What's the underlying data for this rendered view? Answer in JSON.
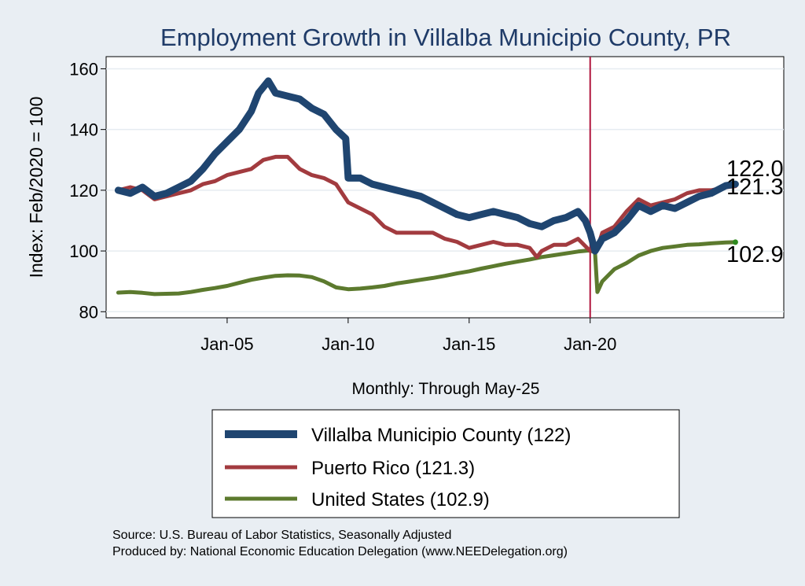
{
  "chart_data": {
    "type": "line",
    "title": "Employment Growth in Villalba Municipio  County, PR",
    "ylabel": "Index: Feb/2020 = 100",
    "xlabel": "Monthly: Through May-25",
    "ylim": [
      78,
      164
    ],
    "yticks": [
      80,
      100,
      120,
      140,
      160
    ],
    "xlim": [
      2000.0,
      2028.0
    ],
    "xticks": [
      {
        "value": 2005.0,
        "label": "Jan-05"
      },
      {
        "value": 2010.0,
        "label": "Jan-10"
      },
      {
        "value": 2015.0,
        "label": "Jan-15"
      },
      {
        "value": 2020.0,
        "label": "Jan-20"
      }
    ],
    "reference_line_x": 2020.0,
    "grid": true,
    "series": [
      {
        "name": "Villalba Municipio  County (122)",
        "color": "#1f4570",
        "end_label": "122.0",
        "points": [
          [
            2000.5,
            120
          ],
          [
            2001.0,
            119
          ],
          [
            2001.5,
            121
          ],
          [
            2002.0,
            118
          ],
          [
            2002.5,
            119
          ],
          [
            2003.0,
            121
          ],
          [
            2003.5,
            123
          ],
          [
            2004.0,
            127
          ],
          [
            2004.5,
            132
          ],
          [
            2005.0,
            136
          ],
          [
            2005.5,
            140
          ],
          [
            2006.0,
            146
          ],
          [
            2006.3,
            152
          ],
          [
            2006.7,
            156
          ],
          [
            2007.0,
            152
          ],
          [
            2007.5,
            151
          ],
          [
            2008.0,
            150
          ],
          [
            2008.5,
            147
          ],
          [
            2009.0,
            145
          ],
          [
            2009.5,
            140
          ],
          [
            2009.9,
            137
          ],
          [
            2010.0,
            124
          ],
          [
            2010.5,
            124
          ],
          [
            2011.0,
            122
          ],
          [
            2011.5,
            121
          ],
          [
            2012.0,
            120
          ],
          [
            2012.5,
            119
          ],
          [
            2013.0,
            118
          ],
          [
            2013.5,
            116
          ],
          [
            2014.0,
            114
          ],
          [
            2014.5,
            112
          ],
          [
            2015.0,
            111
          ],
          [
            2015.5,
            112
          ],
          [
            2016.0,
            113
          ],
          [
            2016.5,
            112
          ],
          [
            2017.0,
            111
          ],
          [
            2017.5,
            109
          ],
          [
            2018.0,
            108
          ],
          [
            2018.5,
            110
          ],
          [
            2019.0,
            111
          ],
          [
            2019.5,
            113
          ],
          [
            2019.8,
            110
          ],
          [
            2020.0,
            106
          ],
          [
            2020.2,
            100
          ],
          [
            2020.5,
            104
          ],
          [
            2021.0,
            106
          ],
          [
            2021.5,
            110
          ],
          [
            2022.0,
            115
          ],
          [
            2022.5,
            113
          ],
          [
            2023.0,
            115
          ],
          [
            2023.5,
            114
          ],
          [
            2024.0,
            116
          ],
          [
            2024.5,
            118
          ],
          [
            2025.0,
            119
          ],
          [
            2025.6,
            121.5
          ],
          [
            2026.0,
            122.0
          ]
        ]
      },
      {
        "name": "Puerto Rico (121.3)",
        "color": "#a23b3f",
        "end_label": "121.3",
        "points": [
          [
            2000.5,
            120
          ],
          [
            2001.0,
            121
          ],
          [
            2001.5,
            120
          ],
          [
            2002.0,
            117
          ],
          [
            2002.5,
            118
          ],
          [
            2003.0,
            119
          ],
          [
            2003.5,
            120
          ],
          [
            2004.0,
            122
          ],
          [
            2004.5,
            123
          ],
          [
            2005.0,
            125
          ],
          [
            2005.5,
            126
          ],
          [
            2006.0,
            127
          ],
          [
            2006.5,
            130
          ],
          [
            2007.0,
            131
          ],
          [
            2007.5,
            131
          ],
          [
            2008.0,
            127
          ],
          [
            2008.5,
            125
          ],
          [
            2009.0,
            124
          ],
          [
            2009.5,
            122
          ],
          [
            2010.0,
            116
          ],
          [
            2010.5,
            114
          ],
          [
            2011.0,
            112
          ],
          [
            2011.5,
            108
          ],
          [
            2012.0,
            106
          ],
          [
            2012.5,
            106
          ],
          [
            2013.0,
            106
          ],
          [
            2013.5,
            106
          ],
          [
            2014.0,
            104
          ],
          [
            2014.5,
            103
          ],
          [
            2015.0,
            101
          ],
          [
            2015.5,
            102
          ],
          [
            2016.0,
            103
          ],
          [
            2016.5,
            102
          ],
          [
            2017.0,
            102
          ],
          [
            2017.5,
            101
          ],
          [
            2017.8,
            98
          ],
          [
            2018.0,
            100
          ],
          [
            2018.5,
            102
          ],
          [
            2019.0,
            102
          ],
          [
            2019.5,
            104
          ],
          [
            2020.0,
            100
          ],
          [
            2020.3,
            101
          ],
          [
            2020.5,
            106
          ],
          [
            2021.0,
            108
          ],
          [
            2021.5,
            113
          ],
          [
            2022.0,
            117
          ],
          [
            2022.5,
            115
          ],
          [
            2023.0,
            116
          ],
          [
            2023.5,
            117
          ],
          [
            2024.0,
            119
          ],
          [
            2024.5,
            120
          ],
          [
            2025.0,
            120
          ],
          [
            2025.6,
            121
          ],
          [
            2026.0,
            121.3
          ]
        ]
      },
      {
        "name": "United States (102.9)",
        "color": "#5c7a2e",
        "end_label": "102.9",
        "points": [
          [
            2000.5,
            86.3
          ],
          [
            2001.0,
            86.5
          ],
          [
            2001.5,
            86.2
          ],
          [
            2002.0,
            85.8
          ],
          [
            2002.5,
            85.9
          ],
          [
            2003.0,
            86.0
          ],
          [
            2003.5,
            86.5
          ],
          [
            2004.0,
            87.2
          ],
          [
            2004.5,
            87.8
          ],
          [
            2005.0,
            88.5
          ],
          [
            2005.5,
            89.5
          ],
          [
            2006.0,
            90.5
          ],
          [
            2006.5,
            91.2
          ],
          [
            2007.0,
            91.8
          ],
          [
            2007.5,
            92.0
          ],
          [
            2008.0,
            91.9
          ],
          [
            2008.5,
            91.4
          ],
          [
            2009.0,
            90.0
          ],
          [
            2009.5,
            88.0
          ],
          [
            2010.0,
            87.4
          ],
          [
            2010.5,
            87.6
          ],
          [
            2011.0,
            88.0
          ],
          [
            2011.5,
            88.5
          ],
          [
            2012.0,
            89.3
          ],
          [
            2012.5,
            89.9
          ],
          [
            2013.0,
            90.5
          ],
          [
            2013.5,
            91.1
          ],
          [
            2014.0,
            91.8
          ],
          [
            2014.5,
            92.6
          ],
          [
            2015.0,
            93.3
          ],
          [
            2015.5,
            94.2
          ],
          [
            2016.0,
            95.0
          ],
          [
            2016.5,
            95.8
          ],
          [
            2017.0,
            96.5
          ],
          [
            2017.5,
            97.2
          ],
          [
            2018.0,
            98.0
          ],
          [
            2018.5,
            98.6
          ],
          [
            2019.0,
            99.2
          ],
          [
            2019.5,
            99.8
          ],
          [
            2020.0,
            100.2
          ],
          [
            2020.2,
            99.5
          ],
          [
            2020.3,
            86.5
          ],
          [
            2020.5,
            90.0
          ],
          [
            2021.0,
            94.0
          ],
          [
            2021.5,
            96.0
          ],
          [
            2022.0,
            98.5
          ],
          [
            2022.5,
            100.0
          ],
          [
            2023.0,
            101.0
          ],
          [
            2023.5,
            101.5
          ],
          [
            2024.0,
            102.0
          ],
          [
            2024.5,
            102.2
          ],
          [
            2025.0,
            102.5
          ],
          [
            2025.6,
            102.8
          ],
          [
            2026.0,
            102.9
          ]
        ]
      }
    ],
    "legend": {
      "placement": "bottom"
    }
  },
  "footer": {
    "source": "Source: U.S. Bureau of Labor Statistics, Seasonally Adjusted",
    "produced": "Produced by: National Economic Education Delegation (www.NEEDelegation.org)"
  }
}
